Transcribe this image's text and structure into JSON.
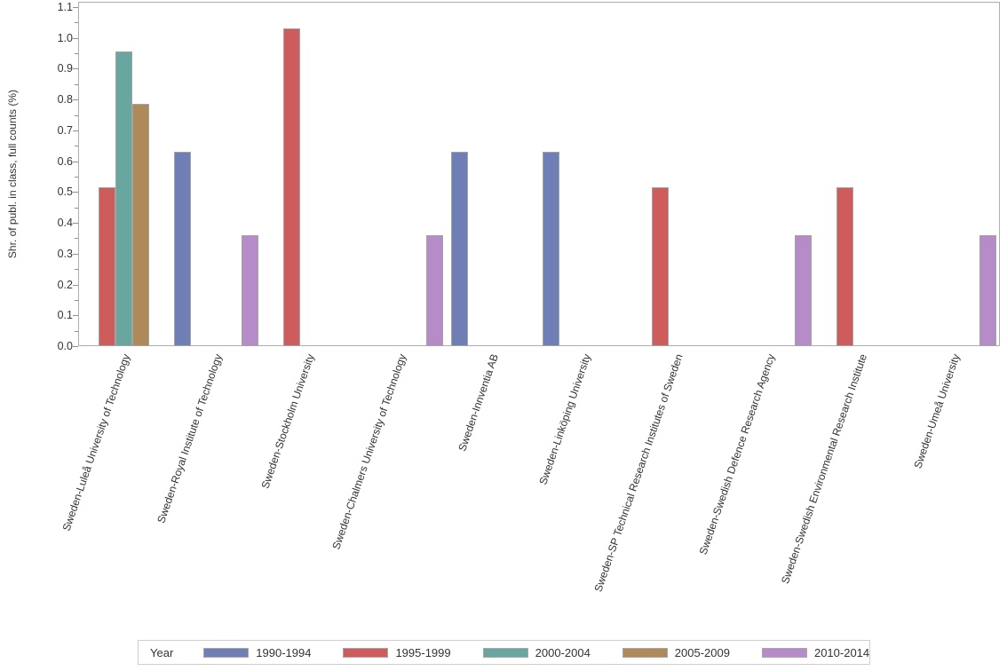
{
  "chart_data": {
    "type": "bar",
    "title": "",
    "xlabel": "",
    "ylabel": "Shr. of publ. in class, full counts (%)",
    "ylim": [
      0.0,
      1.1
    ],
    "ytick_step": 0.1,
    "ytick_labels": [
      "0.0",
      "0.1",
      "0.2",
      "0.3",
      "0.4",
      "0.5",
      "0.6",
      "0.7",
      "0.8",
      "0.9",
      "1.0",
      "1.1"
    ],
    "minor_ticks": [
      0.05,
      0.15,
      0.25,
      0.35,
      0.45,
      0.55,
      0.65,
      0.75,
      0.85,
      0.95,
      1.05
    ],
    "grid": false,
    "legend": {
      "title": "Year",
      "position": "bottom"
    },
    "categories": [
      "Sweden-Luleå University of Technology",
      "Sweden-Royal Institute of Technology",
      "Sweden-Stockholm University",
      "Sweden-Chalmers University of Technology",
      "Sweden-Innventia AB",
      "Sweden-Linköping University",
      "Sweden-SP Technical Research Institutes of Sweden",
      "Sweden-Swedish Defence Research Agency",
      "Sweden-Swedish Environmental Research Institute",
      "Sweden-Umeå University"
    ],
    "series": [
      {
        "name": "1990-1994",
        "color": "#6F7EB4",
        "values": [
          null,
          0.63,
          null,
          null,
          0.63,
          0.63,
          null,
          null,
          null,
          null
        ]
      },
      {
        "name": "1995-1999",
        "color": "#CE5C5C",
        "values": [
          0.515,
          null,
          1.03,
          null,
          null,
          null,
          0.515,
          null,
          0.515,
          null
        ]
      },
      {
        "name": "2000-2004",
        "color": "#69A6A0",
        "values": [
          0.955,
          null,
          null,
          null,
          null,
          null,
          null,
          null,
          null,
          null
        ]
      },
      {
        "name": "2005-2009",
        "color": "#AE8A5A",
        "values": [
          0.785,
          null,
          null,
          null,
          null,
          null,
          null,
          null,
          null,
          null
        ]
      },
      {
        "name": "2010-2014",
        "color": "#B68CC8",
        "values": [
          null,
          0.36,
          null,
          0.36,
          null,
          null,
          null,
          0.36,
          null,
          0.36
        ]
      }
    ],
    "style_colors": {
      "bar_border": "#a3a3a3",
      "frame": "#a9afb5",
      "tick": "#8a9096",
      "text": "#333333",
      "legend_border": "#cfcfcf"
    }
  }
}
